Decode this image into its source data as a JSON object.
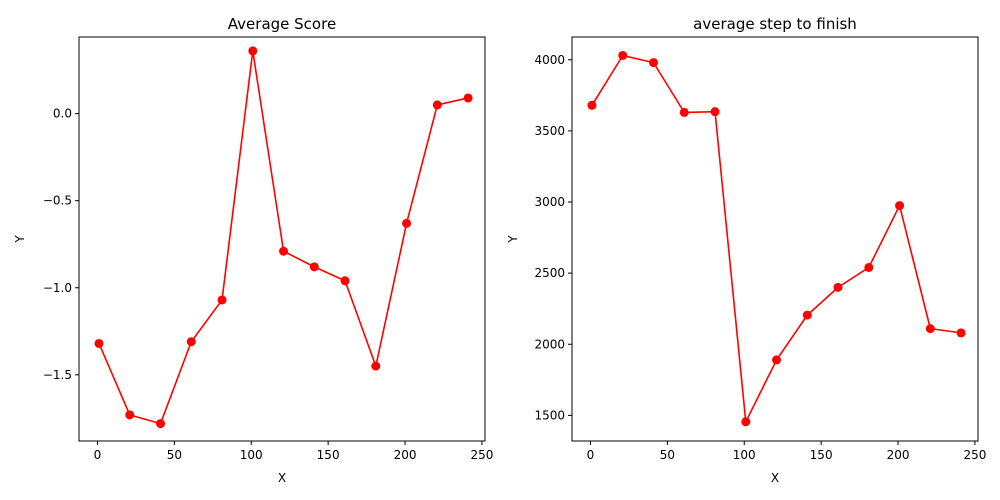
{
  "chart_data": [
    {
      "type": "line",
      "title": "Average Score",
      "xlabel": "X",
      "ylabel": "Y",
      "xlim": [
        -12,
        252
      ],
      "ylim": [
        -1.88,
        0.44
      ],
      "xticks": [
        0,
        50,
        100,
        150,
        200,
        250
      ],
      "xtick_labels": [
        "0",
        "50",
        "100",
        "150",
        "200",
        "250"
      ],
      "yticks": [
        -1.5,
        -1.0,
        -0.5,
        0.0
      ],
      "ytick_labels": [
        "−1.5",
        "−1.0",
        "−0.5",
        "0.0"
      ],
      "grid": false,
      "color": "#ff0000",
      "marker": "circle",
      "series": [
        {
          "x": [
            1,
            21,
            41,
            61,
            81,
            101,
            121,
            141,
            161,
            181,
            201,
            221,
            241
          ],
          "y": [
            -1.32,
            -1.73,
            -1.78,
            -1.31,
            -1.07,
            0.36,
            -0.79,
            -0.88,
            -0.96,
            -1.45,
            -0.63,
            0.05,
            0.09
          ]
        }
      ]
    },
    {
      "type": "line",
      "title": "average step to finish",
      "xlabel": "X",
      "ylabel": "Y",
      "xlim": [
        -12,
        252
      ],
      "ylim": [
        1320,
        4160
      ],
      "xticks": [
        0,
        50,
        100,
        150,
        200,
        250
      ],
      "xtick_labels": [
        "0",
        "50",
        "100",
        "150",
        "200",
        "250"
      ],
      "yticks": [
        1500,
        2000,
        2500,
        3000,
        3500,
        4000
      ],
      "ytick_labels": [
        "1500",
        "2000",
        "2500",
        "3000",
        "3500",
        "4000"
      ],
      "grid": false,
      "color": "#ff0000",
      "marker": "circle",
      "series": [
        {
          "x": [
            1,
            21,
            41,
            61,
            81,
            101,
            121,
            141,
            161,
            181,
            201,
            221,
            241
          ],
          "y": [
            3680,
            4030,
            3980,
            3630,
            3635,
            1455,
            1890,
            2205,
            2400,
            2540,
            2975,
            2110,
            2080
          ]
        }
      ]
    }
  ]
}
